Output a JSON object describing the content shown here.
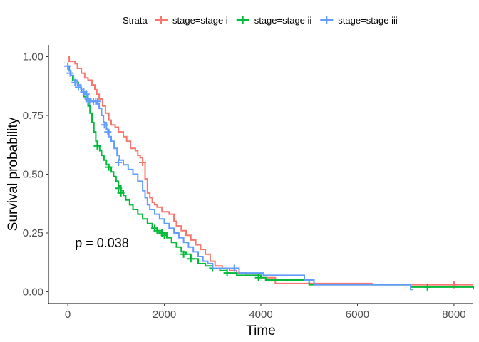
{
  "chart_data": {
    "type": "line",
    "subtype": "kaplan-meier",
    "xlabel": "Time",
    "ylabel": "Survival probability",
    "xlim": [
      -400,
      8400
    ],
    "ylim": [
      -0.05,
      1.05
    ],
    "x_ticks": [
      0,
      2000,
      4000,
      6000,
      8000
    ],
    "y_ticks": [
      0.0,
      0.25,
      0.5,
      0.75,
      1.0
    ],
    "x_tick_labels": [
      "0",
      "2000",
      "4000",
      "6000",
      "8000"
    ],
    "y_tick_labels": [
      "0.00",
      "0.25",
      "0.50",
      "0.75",
      "1.00"
    ],
    "grid": false,
    "legend_title": "Strata",
    "legend_position": "top",
    "annotation": "p = 0.038",
    "annotation_pos": [
      150,
      0.19
    ],
    "series": [
      {
        "name": "stage=stage i",
        "color": "#f8766d",
        "steps": [
          [
            0,
            1.0
          ],
          [
            30,
            0.98
          ],
          [
            150,
            0.97
          ],
          [
            200,
            0.95
          ],
          [
            280,
            0.93
          ],
          [
            350,
            0.91
          ],
          [
            420,
            0.9
          ],
          [
            500,
            0.88
          ],
          [
            560,
            0.86
          ],
          [
            600,
            0.84
          ],
          [
            650,
            0.82
          ],
          [
            720,
            0.79
          ],
          [
            780,
            0.76
          ],
          [
            850,
            0.73
          ],
          [
            900,
            0.71
          ],
          [
            980,
            0.7
          ],
          [
            1050,
            0.68
          ],
          [
            1150,
            0.66
          ],
          [
            1220,
            0.64
          ],
          [
            1300,
            0.61
          ],
          [
            1400,
            0.6
          ],
          [
            1450,
            0.58
          ],
          [
            1500,
            0.57
          ],
          [
            1550,
            0.55
          ],
          [
            1600,
            0.48
          ],
          [
            1650,
            0.42
          ],
          [
            1700,
            0.4
          ],
          [
            1750,
            0.38
          ],
          [
            1800,
            0.37
          ],
          [
            1850,
            0.36
          ],
          [
            1950,
            0.34
          ],
          [
            2100,
            0.33
          ],
          [
            2200,
            0.3
          ],
          [
            2250,
            0.28
          ],
          [
            2350,
            0.26
          ],
          [
            2450,
            0.24
          ],
          [
            2550,
            0.22
          ],
          [
            2650,
            0.2
          ],
          [
            2750,
            0.18
          ],
          [
            2850,
            0.16
          ],
          [
            2950,
            0.13
          ],
          [
            3050,
            0.11
          ],
          [
            3200,
            0.1
          ],
          [
            3350,
            0.09
          ],
          [
            3500,
            0.08
          ],
          [
            3700,
            0.07
          ],
          [
            4000,
            0.06
          ],
          [
            4300,
            0.035
          ],
          [
            4800,
            0.035
          ],
          [
            6300,
            0.03
          ],
          [
            8400,
            0.03
          ]
        ],
        "censored": [
          [
            1550,
            0.55
          ],
          [
            8000,
            0.03
          ]
        ]
      },
      {
        "name": "stage=stage ii",
        "color": "#00ba38",
        "steps": [
          [
            0,
            0.96
          ],
          [
            30,
            0.94
          ],
          [
            60,
            0.92
          ],
          [
            100,
            0.9
          ],
          [
            150,
            0.89
          ],
          [
            220,
            0.87
          ],
          [
            280,
            0.85
          ],
          [
            330,
            0.83
          ],
          [
            380,
            0.81
          ],
          [
            420,
            0.79
          ],
          [
            460,
            0.76
          ],
          [
            500,
            0.72
          ],
          [
            540,
            0.68
          ],
          [
            580,
            0.64
          ],
          [
            620,
            0.62
          ],
          [
            660,
            0.6
          ],
          [
            700,
            0.58
          ],
          [
            750,
            0.56
          ],
          [
            800,
            0.54
          ],
          [
            850,
            0.53
          ],
          [
            900,
            0.51
          ],
          [
            950,
            0.49
          ],
          [
            1000,
            0.47
          ],
          [
            1050,
            0.45
          ],
          [
            1100,
            0.43
          ],
          [
            1150,
            0.41
          ],
          [
            1200,
            0.39
          ],
          [
            1280,
            0.37
          ],
          [
            1350,
            0.35
          ],
          [
            1450,
            0.33
          ],
          [
            1550,
            0.31
          ],
          [
            1650,
            0.29
          ],
          [
            1750,
            0.27
          ],
          [
            1850,
            0.26
          ],
          [
            1950,
            0.25
          ],
          [
            2050,
            0.23
          ],
          [
            2150,
            0.21
          ],
          [
            2250,
            0.19
          ],
          [
            2350,
            0.17
          ],
          [
            2450,
            0.16
          ],
          [
            2550,
            0.14
          ],
          [
            2700,
            0.12
          ],
          [
            2850,
            0.11
          ],
          [
            3000,
            0.1
          ],
          [
            3150,
            0.09
          ],
          [
            3300,
            0.08
          ],
          [
            3500,
            0.07
          ],
          [
            3700,
            0.07
          ],
          [
            4000,
            0.06
          ],
          [
            4100,
            0.05
          ],
          [
            4500,
            0.05
          ],
          [
            5000,
            0.03
          ],
          [
            6500,
            0.03
          ],
          [
            7100,
            0.02
          ],
          [
            8350,
            0.02
          ],
          [
            8400,
            0.01
          ]
        ],
        "censored": [
          [
            610,
            0.62
          ],
          [
            850,
            0.53
          ],
          [
            1050,
            0.44
          ],
          [
            1100,
            0.42
          ],
          [
            1800,
            0.27
          ],
          [
            1850,
            0.26
          ],
          [
            1950,
            0.25
          ],
          [
            2000,
            0.24
          ],
          [
            2400,
            0.16
          ],
          [
            2550,
            0.14
          ],
          [
            3000,
            0.1
          ],
          [
            3300,
            0.08
          ],
          [
            3950,
            0.06
          ],
          [
            7450,
            0.02
          ]
        ]
      },
      {
        "name": "stage=stage iii",
        "color": "#619cff",
        "steps": [
          [
            0,
            0.96
          ],
          [
            20,
            0.94
          ],
          [
            60,
            0.92
          ],
          [
            120,
            0.9
          ],
          [
            200,
            0.88
          ],
          [
            270,
            0.86
          ],
          [
            320,
            0.85
          ],
          [
            360,
            0.84
          ],
          [
            410,
            0.82
          ],
          [
            440,
            0.81
          ],
          [
            520,
            0.81
          ],
          [
            600,
            0.8
          ],
          [
            650,
            0.78
          ],
          [
            700,
            0.75
          ],
          [
            740,
            0.72
          ],
          [
            800,
            0.69
          ],
          [
            850,
            0.66
          ],
          [
            900,
            0.64
          ],
          [
            960,
            0.61
          ],
          [
            1020,
            0.58
          ],
          [
            1070,
            0.56
          ],
          [
            1150,
            0.54
          ],
          [
            1250,
            0.52
          ],
          [
            1350,
            0.5
          ],
          [
            1450,
            0.47
          ],
          [
            1550,
            0.43
          ],
          [
            1600,
            0.4
          ],
          [
            1650,
            0.37
          ],
          [
            1700,
            0.35
          ],
          [
            1800,
            0.33
          ],
          [
            1900,
            0.31
          ],
          [
            2000,
            0.29
          ],
          [
            2100,
            0.27
          ],
          [
            2200,
            0.25
          ],
          [
            2300,
            0.23
          ],
          [
            2400,
            0.21
          ],
          [
            2500,
            0.19
          ],
          [
            2600,
            0.17
          ],
          [
            2700,
            0.15
          ],
          [
            2800,
            0.13
          ],
          [
            2900,
            0.12
          ],
          [
            3000,
            0.1
          ],
          [
            3500,
            0.1
          ],
          [
            3550,
            0.08
          ],
          [
            3950,
            0.08
          ],
          [
            4050,
            0.07
          ],
          [
            4450,
            0.07
          ],
          [
            4900,
            0.05
          ],
          [
            5050,
            0.05
          ],
          [
            5100,
            0.03
          ],
          [
            7100,
            0.03
          ],
          [
            7100,
            0.01
          ],
          [
            7150,
            0.01
          ]
        ],
        "censored": [
          [
            0,
            0.96
          ],
          [
            50,
            0.93
          ],
          [
            150,
            0.89
          ],
          [
            220,
            0.87
          ],
          [
            330,
            0.85
          ],
          [
            380,
            0.84
          ],
          [
            420,
            0.82
          ],
          [
            450,
            0.81
          ],
          [
            530,
            0.81
          ],
          [
            580,
            0.81
          ],
          [
            620,
            0.81
          ],
          [
            760,
            0.71
          ],
          [
            830,
            0.68
          ],
          [
            1050,
            0.55
          ],
          [
            3450,
            0.1
          ]
        ]
      }
    ]
  }
}
